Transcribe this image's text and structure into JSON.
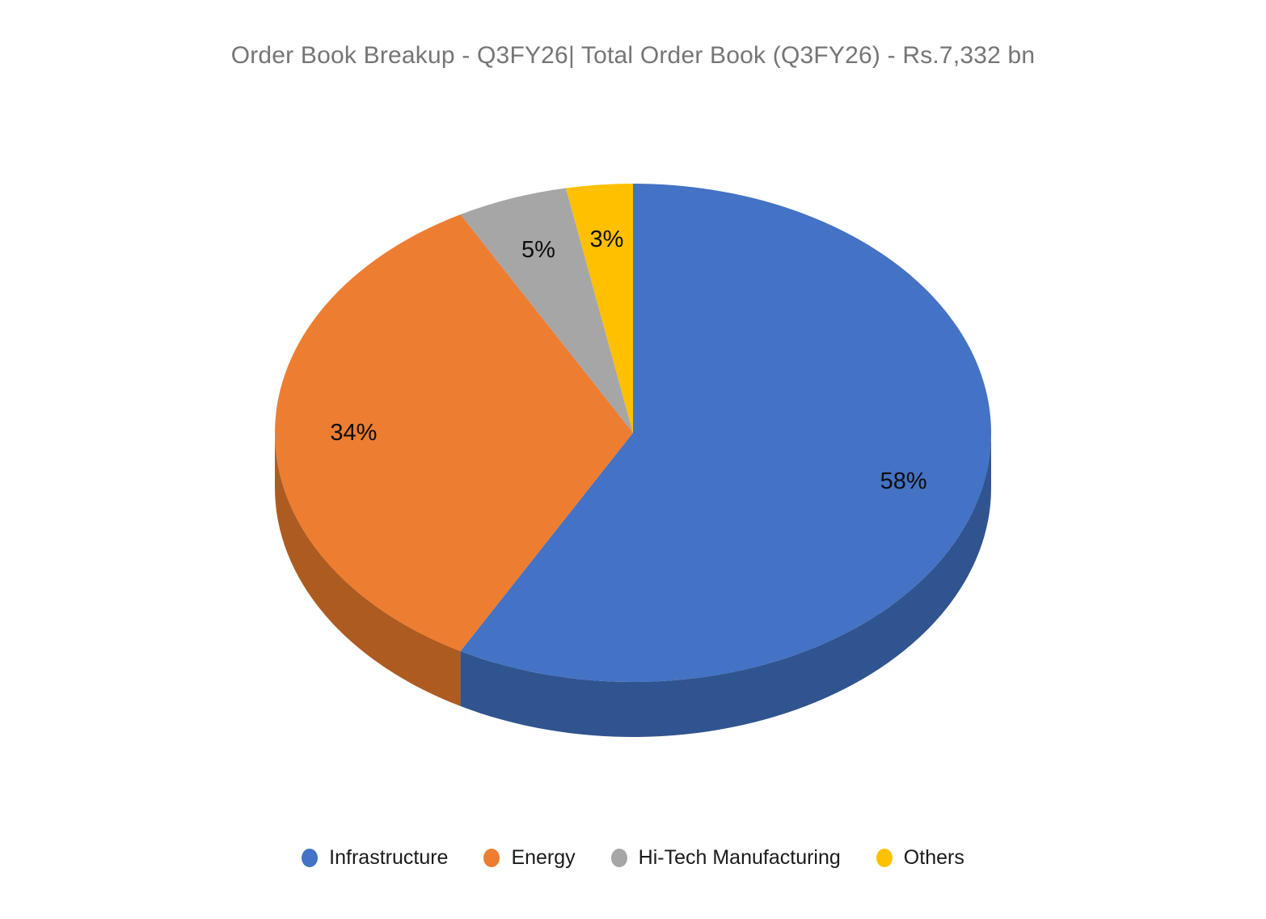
{
  "chart_data": {
    "type": "pie",
    "effect": "3d",
    "title": "Order Book Breakup - Q3FY26| Total Order Book (Q3FY26) - Rs.7,332 bn",
    "total_label": "Total Order Book (Q3FY26)",
    "total_value": "Rs.7,332 bn",
    "categories": [
      "Infrastructure",
      "Energy",
      "Hi-Tech Manufacturing",
      "Others"
    ],
    "values": [
      58,
      34,
      5,
      3
    ],
    "unit": "%",
    "data_labels": [
      "58%",
      "34%",
      "5%",
      "3%"
    ],
    "colors": [
      "#4472C4",
      "#ED7D31",
      "#A6A6A6",
      "#FFC000"
    ],
    "side_colors": [
      "#30548F",
      "#AE5B22",
      "#7F7F7F",
      "#BF9000"
    ],
    "start_angle_deg": 0,
    "direction": "clockwise",
    "legend_position": "bottom",
    "title_color": "#757575",
    "label_color": "#0d0d0d"
  }
}
